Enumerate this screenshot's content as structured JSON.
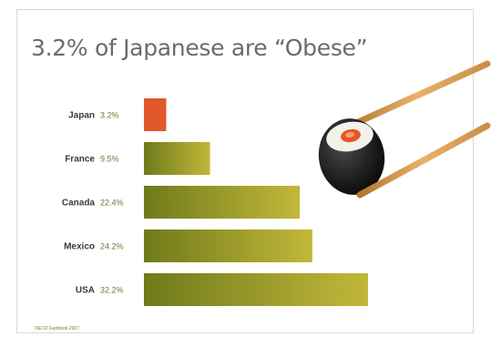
{
  "slide": {
    "title": "3.2% of Japanese are “Obese”",
    "source": "OECD Factbook 2007"
  },
  "chart_data": {
    "type": "bar",
    "orientation": "horizontal",
    "title": "3.2% of Japanese are “Obese”",
    "xlabel": "",
    "ylabel": "",
    "categories": [
      "Japan",
      "France",
      "Canada",
      "Mexico",
      "USA"
    ],
    "values": [
      3.2,
      9.5,
      22.4,
      24.2,
      32.2
    ],
    "value_labels": [
      "3.2%",
      "9.5%",
      "22.4%",
      "24.2%",
      "32.2%"
    ],
    "xlim": [
      0,
      32.2
    ],
    "grid": false,
    "colors": {
      "highlight": "#e0582b",
      "bar_dark": "#6f7a1a",
      "bar_light": "#c2b83a",
      "category_text": "#3a3a3a",
      "value_text": "#6b7a3a"
    },
    "highlight_category": "Japan"
  },
  "image": {
    "icon": "sushi-with-chopsticks"
  }
}
